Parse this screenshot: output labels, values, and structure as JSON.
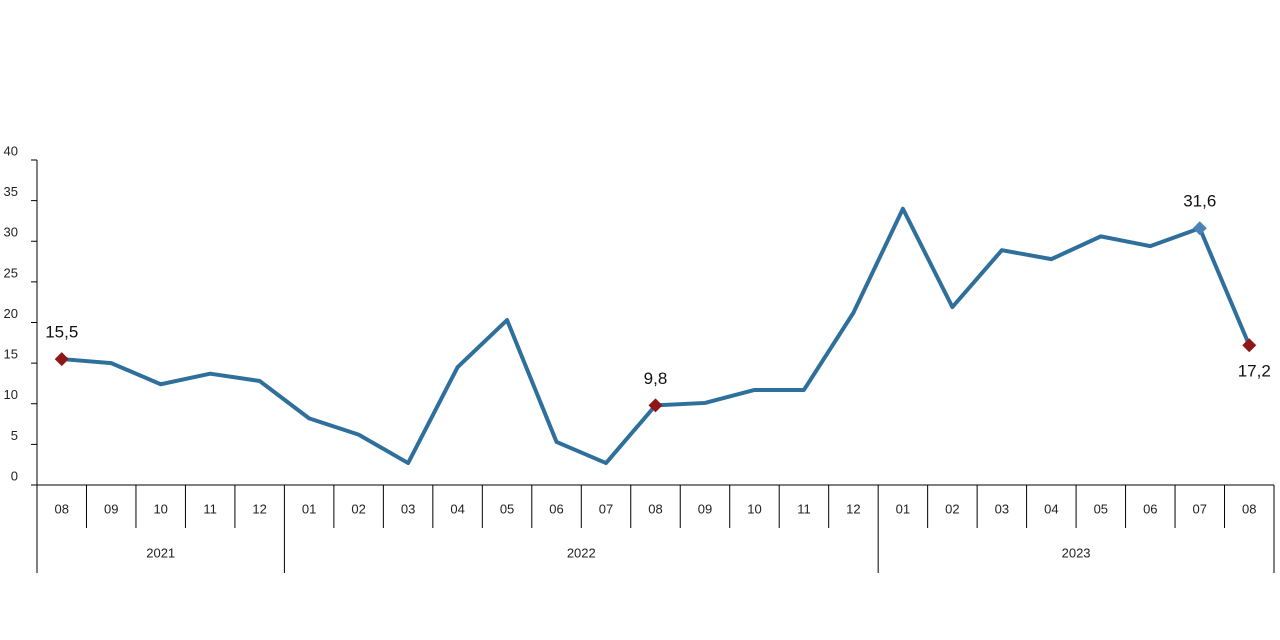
{
  "chart_data": {
    "type": "line",
    "categories": [
      "08",
      "09",
      "10",
      "11",
      "12",
      "01",
      "02",
      "03",
      "04",
      "05",
      "06",
      "07",
      "08",
      "09",
      "10",
      "11",
      "12",
      "01",
      "02",
      "03",
      "04",
      "05",
      "06",
      "07",
      "08"
    ],
    "groups": [
      {
        "label": "2021",
        "span": 5
      },
      {
        "label": "2022",
        "span": 12
      },
      {
        "label": "2023",
        "span": 8
      }
    ],
    "series": [
      {
        "color": "#2f6f9b",
        "values": [
          15.5,
          15.0,
          12.4,
          13.7,
          12.8,
          8.2,
          6.2,
          2.7,
          14.5,
          20.3,
          5.3,
          2.7,
          9.8,
          10.1,
          11.7,
          11.7,
          21.2,
          34.0,
          21.9,
          28.9,
          27.8,
          30.6,
          29.4,
          31.6,
          17.2
        ],
        "value_labels": [
          "15,5",
          null,
          null,
          null,
          null,
          null,
          null,
          null,
          null,
          null,
          null,
          null,
          "9,8",
          null,
          null,
          null,
          null,
          null,
          null,
          null,
          null,
          null,
          null,
          "31,6",
          "17,2"
        ],
        "marker_colors": [
          "#8e1717",
          null,
          null,
          null,
          null,
          null,
          null,
          null,
          null,
          null,
          null,
          null,
          "#8e1717",
          null,
          null,
          null,
          null,
          null,
          null,
          null,
          null,
          null,
          null,
          "#4a82b5",
          "#8e1717"
        ]
      }
    ],
    "ylim": [
      0,
      40
    ],
    "yticks": [
      0,
      5,
      10,
      15,
      20,
      25,
      30,
      35,
      40
    ],
    "grid": false
  }
}
